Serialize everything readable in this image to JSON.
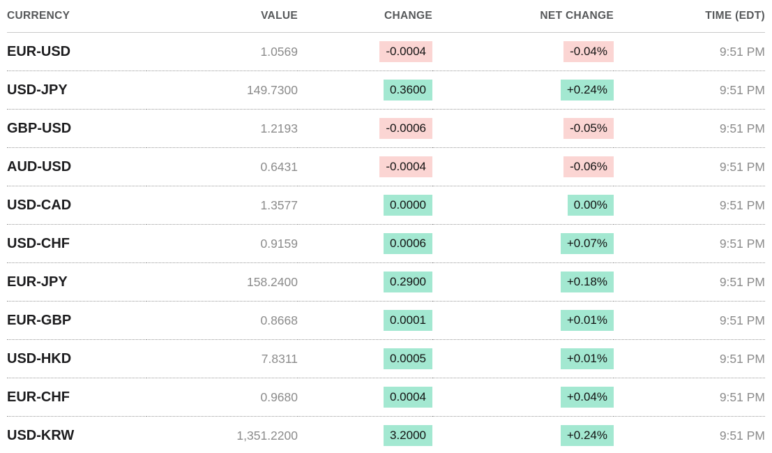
{
  "colors": {
    "positive_bg": "#a3e8d1",
    "negative_bg": "#fbd5d3"
  },
  "table": {
    "headers": [
      "CURRENCY",
      "VALUE",
      "CHANGE",
      "NET CHANGE",
      "TIME (EDT)"
    ],
    "rows": [
      {
        "currency": "EUR-USD",
        "value": "1.0569",
        "change": "-0.0004",
        "net_change": "-0.04%",
        "direction": "down",
        "time": "9:51 PM"
      },
      {
        "currency": "USD-JPY",
        "value": "149.7300",
        "change": "0.3600",
        "net_change": "+0.24%",
        "direction": "up",
        "time": "9:51 PM"
      },
      {
        "currency": "GBP-USD",
        "value": "1.2193",
        "change": "-0.0006",
        "net_change": "-0.05%",
        "direction": "down",
        "time": "9:51 PM"
      },
      {
        "currency": "AUD-USD",
        "value": "0.6431",
        "change": "-0.0004",
        "net_change": "-0.06%",
        "direction": "down",
        "time": "9:51 PM"
      },
      {
        "currency": "USD-CAD",
        "value": "1.3577",
        "change": "0.0000",
        "net_change": "0.00%",
        "direction": "up",
        "time": "9:51 PM"
      },
      {
        "currency": "USD-CHF",
        "value": "0.9159",
        "change": "0.0006",
        "net_change": "+0.07%",
        "direction": "up",
        "time": "9:51 PM"
      },
      {
        "currency": "EUR-JPY",
        "value": "158.2400",
        "change": "0.2900",
        "net_change": "+0.18%",
        "direction": "up",
        "time": "9:51 PM"
      },
      {
        "currency": "EUR-GBP",
        "value": "0.8668",
        "change": "0.0001",
        "net_change": "+0.01%",
        "direction": "up",
        "time": "9:51 PM"
      },
      {
        "currency": "USD-HKD",
        "value": "7.8311",
        "change": "0.0005",
        "net_change": "+0.01%",
        "direction": "up",
        "time": "9:51 PM"
      },
      {
        "currency": "EUR-CHF",
        "value": "0.9680",
        "change": "0.0004",
        "net_change": "+0.04%",
        "direction": "up",
        "time": "9:51 PM"
      },
      {
        "currency": "USD-KRW",
        "value": "1,351.2200",
        "change": "3.2000",
        "net_change": "+0.24%",
        "direction": "up",
        "time": "9:51 PM"
      }
    ]
  }
}
